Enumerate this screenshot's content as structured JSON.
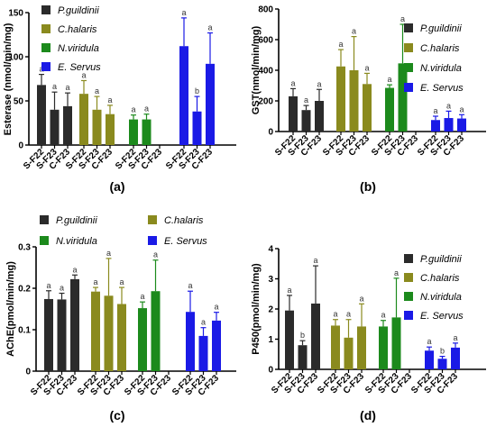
{
  "panel_labels": [
    "(a)",
    "(b)",
    "(c)",
    "(d)"
  ],
  "category_labels": [
    "S-F22",
    "S-F23",
    "C-F23"
  ],
  "species": [
    {
      "name": "P.guildinii",
      "color": "#2b2b2b"
    },
    {
      "name": "C.halaris",
      "color": "#8a8a1e"
    },
    {
      "name": "N.viridula",
      "color": "#1c8a1c"
    },
    {
      "name": "E. Servus",
      "color": "#1a1ae6"
    }
  ],
  "chart_data": [
    {
      "type": "bar",
      "panel": "(a)",
      "ylabel": "Esterase (nmol/min/mg)",
      "ylim": [
        0,
        150
      ],
      "yticks": [
        0,
        50,
        100,
        150
      ],
      "legend": "top-left, 1 column",
      "categories": [
        "S-F22",
        "S-F23",
        "C-F23"
      ],
      "series": [
        {
          "name": "P.guildinii",
          "values": [
            68,
            40,
            44
          ],
          "errors": [
            12,
            20,
            15
          ],
          "letters": [
            "a",
            "a",
            "a"
          ]
        },
        {
          "name": "C.halaris",
          "values": [
            58,
            40,
            35
          ],
          "errors": [
            15,
            15,
            10
          ],
          "letters": [
            "a",
            "a",
            "a"
          ]
        },
        {
          "name": "N.viridula",
          "values": [
            29,
            29,
            null
          ],
          "errors": [
            5,
            6,
            null
          ],
          "letters": [
            "a",
            "a",
            ""
          ]
        },
        {
          "name": "E. Servus",
          "values": [
            112,
            38,
            92
          ],
          "errors": [
            32,
            17,
            35
          ],
          "letters": [
            "a",
            "b",
            "a"
          ]
        }
      ]
    },
    {
      "type": "bar",
      "panel": "(b)",
      "ylabel": "GST(nmol/min/mg)",
      "ylim": [
        0,
        800
      ],
      "yticks": [
        0,
        200,
        400,
        600,
        800
      ],
      "legend": "right, 1 column",
      "categories": [
        "S-F22",
        "S-F23",
        "C-F23"
      ],
      "series": [
        {
          "name": "P.guildinii",
          "values": [
            230,
            140,
            200
          ],
          "errors": [
            50,
            30,
            75
          ],
          "letters": [
            "a",
            "a",
            "a"
          ]
        },
        {
          "name": "C.halaris",
          "values": [
            425,
            400,
            310
          ],
          "errors": [
            110,
            220,
            70
          ],
          "letters": [
            "a",
            "a",
            "a"
          ]
        },
        {
          "name": "N.viridula",
          "values": [
            285,
            445,
            null
          ],
          "errors": [
            20,
            255,
            null
          ],
          "letters": [
            "a",
            "a",
            ""
          ]
        },
        {
          "name": "E. Servus",
          "values": [
            75,
            88,
            85
          ],
          "errors": [
            25,
            45,
            25
          ],
          "letters": [
            "a",
            "a",
            "a"
          ]
        }
      ]
    },
    {
      "type": "bar",
      "panel": "(c)",
      "ylabel": "AChE(pmol/min/mg)",
      "ylim": [
        0,
        0.3
      ],
      "yticks": [
        0.0,
        0.1,
        0.2,
        0.3
      ],
      "legend": "top, 2 columns",
      "categories": [
        "S-F22",
        "S-F23",
        "C-F23"
      ],
      "series": [
        {
          "name": "P.guildinii",
          "values": [
            0.174,
            0.173,
            0.222
          ],
          "errors": [
            0.02,
            0.015,
            0.01
          ],
          "letters": [
            "a",
            "a",
            "a"
          ]
        },
        {
          "name": "C.halaris",
          "values": [
            0.192,
            0.182,
            0.162
          ],
          "errors": [
            0.01,
            0.09,
            0.04
          ],
          "letters": [
            "a",
            "a",
            "a"
          ]
        },
        {
          "name": "N.viridula",
          "values": [
            0.152,
            0.193,
            null
          ],
          "errors": [
            0.015,
            0.075,
            null
          ],
          "letters": [
            "a",
            "a",
            ""
          ]
        },
        {
          "name": "E. Servus",
          "values": [
            0.143,
            0.085,
            0.122
          ],
          "errors": [
            0.05,
            0.02,
            0.02
          ],
          "letters": [
            "a",
            "a",
            "a"
          ]
        }
      ]
    },
    {
      "type": "bar",
      "panel": "(d)",
      "ylabel": "P450(pmol/min/mg)",
      "ylim": [
        0,
        4
      ],
      "yticks": [
        0,
        1,
        2,
        3,
        4
      ],
      "legend": "right, 1 column",
      "categories": [
        "S-F22",
        "S-F23",
        "C-F23"
      ],
      "series": [
        {
          "name": "P.guildinii",
          "values": [
            1.95,
            0.8,
            2.18
          ],
          "errors": [
            0.5,
            0.15,
            1.25
          ],
          "letters": [
            "a",
            "b",
            "a"
          ]
        },
        {
          "name": "C.halaris",
          "values": [
            1.45,
            1.05,
            1.42
          ],
          "errors": [
            0.2,
            0.6,
            0.75
          ],
          "letters": [
            "a",
            "a",
            "a"
          ]
        },
        {
          "name": "N.viridula",
          "values": [
            1.42,
            1.72,
            null
          ],
          "errors": [
            0.2,
            1.3,
            null
          ],
          "letters": [
            "a",
            "a",
            ""
          ]
        },
        {
          "name": "E. Servus",
          "values": [
            0.62,
            0.35,
            0.72
          ],
          "errors": [
            0.12,
            0.08,
            0.15
          ],
          "letters": [
            "a",
            "b",
            "a"
          ]
        }
      ]
    }
  ]
}
